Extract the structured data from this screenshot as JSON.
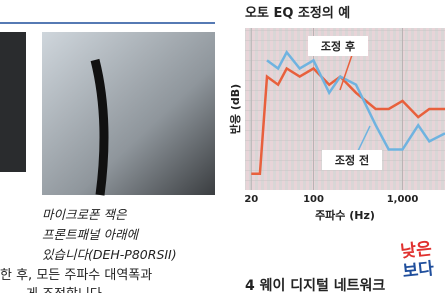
{
  "caption": [
    "마이크로폰 잭은",
    "프론트패널 아래에",
    "있습니다(DEH-P80RSII)"
  ],
  "body_lines": [
    "한 후, 모든 주파수 대역폭과",
    "게 조정합니다"
  ],
  "section_heading": "4 웨이 디지털 네트워크",
  "sticker": [
    "낮은",
    "보다"
  ],
  "chart_data": {
    "type": "line",
    "title": "오토 EQ 조정의 예",
    "x_label": "주파수 (Hz)",
    "y_label": "반응 (dB)",
    "x": [
      20,
      25,
      30,
      40,
      50,
      70,
      100,
      150,
      200,
      300,
      500,
      700,
      1000,
      1500,
      2000,
      3000
    ],
    "series": [
      {
        "name": "조정 후",
        "color": "#e8603c",
        "values": [
          -8,
          -8,
          4,
          3,
          5,
          4,
          5,
          3,
          4,
          2,
          0,
          0,
          1,
          -1,
          0,
          0
        ]
      },
      {
        "name": "조정 전",
        "color": "#6fb3e0",
        "values": [
          null,
          null,
          6,
          5,
          7,
          5,
          6,
          2,
          4,
          3,
          -2,
          -5,
          -5,
          -2,
          -4,
          -3
        ]
      }
    ],
    "xlim": [
      17,
      3000
    ],
    "xticks": [
      20,
      100,
      {
        "value": 1000,
        "label": "1,000"
      }
    ],
    "x_log": true,
    "ylim": [
      -10,
      10
    ],
    "grid": true
  }
}
